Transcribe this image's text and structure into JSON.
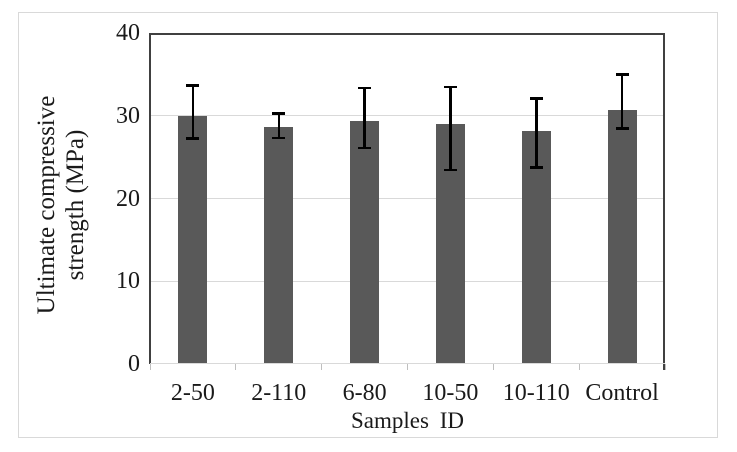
{
  "figure": {
    "background": "#ffffff",
    "outer_border_color": "#d9d9d9"
  },
  "chart_data": {
    "type": "bar",
    "title": "",
    "xlabel": "Samples ID",
    "ylabel": "Ultimate compressive strength (MPa)",
    "ylabel_lines": [
      "Ultimate compressive",
      "strength (MPa)"
    ],
    "categories": [
      "2-50",
      "2-110",
      "6-80",
      "10-50",
      "10-110",
      "Control"
    ],
    "values": [
      30.0,
      28.6,
      29.4,
      29.0,
      28.2,
      30.7
    ],
    "error_low": [
      27.2,
      27.3,
      26.1,
      23.4,
      23.7,
      28.4
    ],
    "error_high": [
      33.7,
      30.3,
      33.4,
      33.5,
      32.1,
      35.0
    ],
    "ylim": [
      0,
      40
    ],
    "yticks": [
      0,
      10,
      20,
      30,
      40
    ],
    "grid": "horizontal",
    "legend": "none",
    "colors": {
      "bar": "#595959",
      "error_bar": "#000000",
      "gridline": "#d9d9d9",
      "axis_line_dark": "#404040",
      "axis_line_light": "#d9d9d9",
      "boundary_tick": "#bfbfbf",
      "text": "#1a1a1a"
    }
  }
}
